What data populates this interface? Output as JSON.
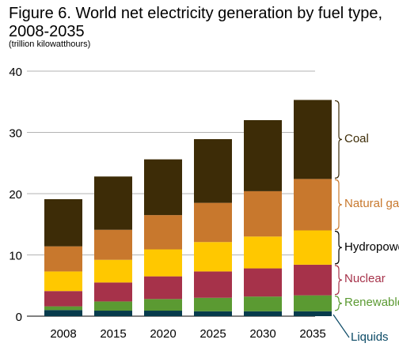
{
  "chart_data": {
    "type": "bar",
    "stacked": true,
    "title": "Figure 6. World net electricity generation by fuel type, 2008-2035",
    "subtitle": "(trillion kilowatthours)",
    "categories": [
      "2008",
      "2015",
      "2020",
      "2025",
      "2030",
      "2035"
    ],
    "ylim": [
      0,
      40
    ],
    "yticks": [
      "0",
      "10",
      "20",
      "30",
      "40"
    ],
    "grid": "horizontal",
    "legend_position": "right, inline beside 2035 bar",
    "series": [
      {
        "name": "Liquids",
        "color": "#073b4c",
        "label_color": "#0b4a66",
        "values": [
          1.0,
          0.9,
          0.9,
          0.8,
          0.8,
          0.8
        ]
      },
      {
        "name": "Renewables",
        "color": "#5b9a32",
        "label_color": "#5b9a32",
        "values": [
          0.6,
          1.5,
          1.9,
          2.2,
          2.4,
          2.6
        ]
      },
      {
        "name": "Nuclear",
        "color": "#a6324a",
        "label_color": "#a6324a",
        "values": [
          2.5,
          3.1,
          3.7,
          4.3,
          4.6,
          5.0
        ]
      },
      {
        "name": "Hydropower",
        "color": "#ffc800",
        "label_color": "#000000",
        "values": [
          3.2,
          3.7,
          4.4,
          4.8,
          5.2,
          5.6
        ]
      },
      {
        "name": "Natural gas",
        "color": "#c8782d",
        "label_color": "#c8782d",
        "values": [
          4.1,
          4.9,
          5.6,
          6.4,
          7.4,
          8.4
        ]
      },
      {
        "name": "Coal",
        "color": "#3d2c07",
        "label_color": "#3d2c07",
        "values": [
          7.7,
          8.7,
          9.1,
          10.4,
          11.6,
          12.9
        ]
      }
    ]
  }
}
